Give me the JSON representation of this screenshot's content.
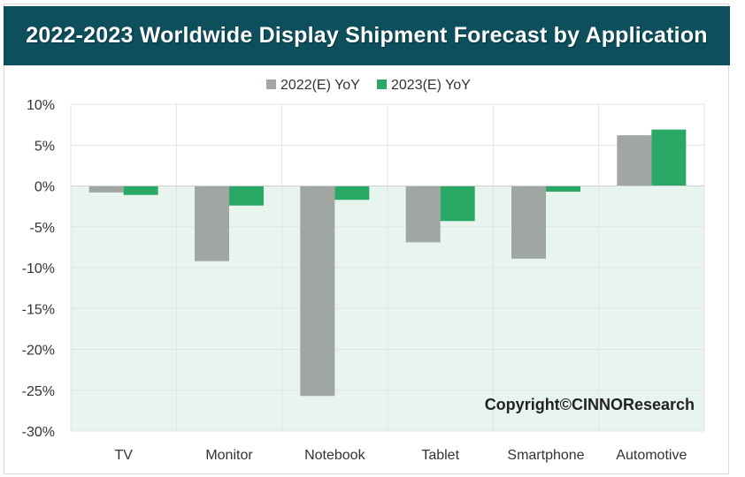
{
  "chart_data": {
    "type": "bar",
    "title": "2022-2023 Worldwide Display Shipment Forecast by Application",
    "categories": [
      "TV",
      "Monitor",
      "Notebook",
      "Tablet",
      "Smartphone",
      "Automotive"
    ],
    "series": [
      {
        "name": "2022(E) YoY",
        "color": "#a0a6a2",
        "values": [
          -0.8,
          -9.2,
          -25.7,
          -6.9,
          -8.9,
          6.2
        ]
      },
      {
        "name": "2023(E) YoY",
        "color": "#2aa866",
        "values": [
          -1.1,
          -2.4,
          -1.7,
          -4.3,
          -0.7,
          6.9
        ]
      }
    ],
    "ylim": [
      -30,
      10
    ],
    "yticks": [
      "10%",
      "5%",
      "0%",
      "-5%",
      "-10%",
      "-15%",
      "-20%",
      "-25%",
      "-30%"
    ],
    "grid": true,
    "legend_position": "top",
    "negative_region_color": "#e8f5ee",
    "annotation": "Copyright©CINNOResearch"
  }
}
